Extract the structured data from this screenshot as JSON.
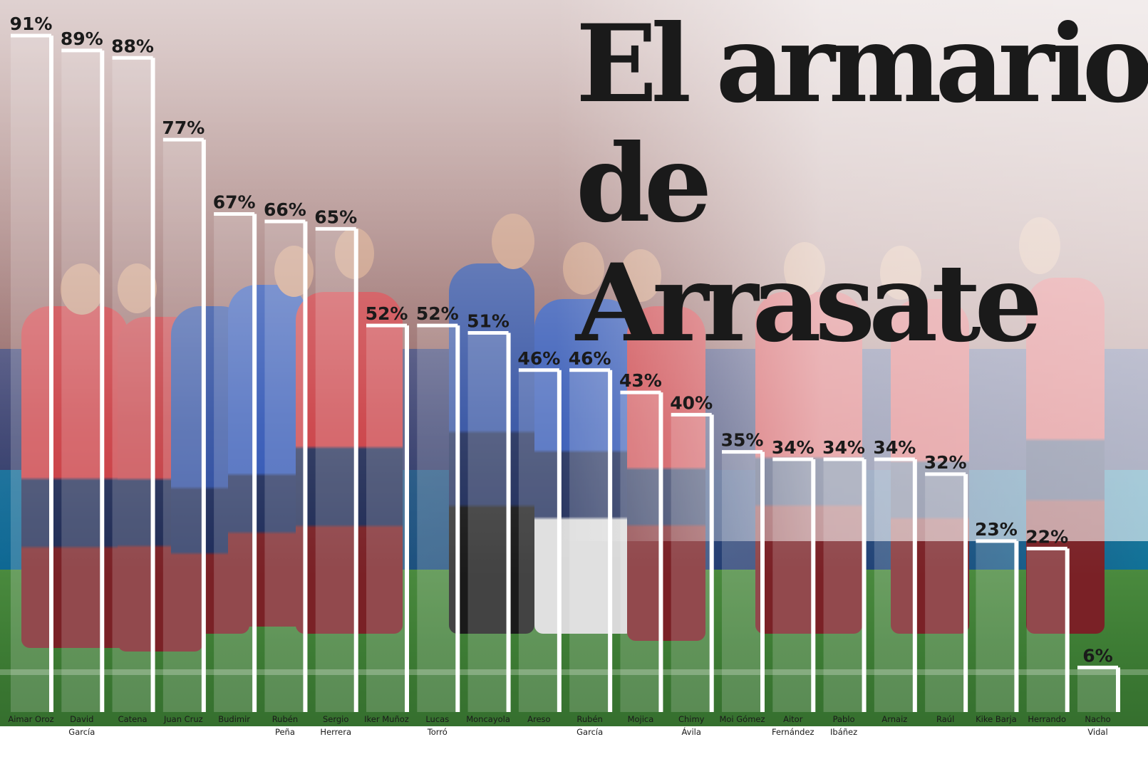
{
  "chart_data": {
    "type": "bar",
    "title": "El armario\nde Arrasate",
    "categories": [
      "Aimar Oroz",
      "David García",
      "Catena",
      "Juan Cruz",
      "Budimir",
      "Rubén Peña",
      "Sergio Herrera",
      "Iker Muñoz",
      "Lucas Torró",
      "Moncayola",
      "Areso",
      "Rubén García",
      "Mojica",
      "Chimy Ávila",
      "Moi Gómez",
      "Aitor Fernández",
      "Pablo Ibáñez",
      "Arnaiz",
      "Raúl",
      "Kike Barja",
      "Herrando",
      "Nacho Vidal"
    ],
    "category_lines": [
      [
        "Aimar Oroz"
      ],
      [
        "David",
        "García"
      ],
      [
        "Catena"
      ],
      [
        "Juan Cruz"
      ],
      [
        "Budimir"
      ],
      [
        "Rubén",
        "Peña"
      ],
      [
        "Sergio",
        "Herrera"
      ],
      [
        "Iker Muñoz"
      ],
      [
        "Lucas",
        "Torró"
      ],
      [
        "Moncayola"
      ],
      [
        "Areso"
      ],
      [
        "Rubén",
        "García"
      ],
      [
        "Mojica"
      ],
      [
        "Chimy",
        "Ávila"
      ],
      [
        "Moi Gómez"
      ],
      [
        "Aitor",
        "Fernández"
      ],
      [
        "Pablo",
        "Ibáñez"
      ],
      [
        "Arnaiz"
      ],
      [
        "Raúl"
      ],
      [
        "Kike Barja"
      ],
      [
        "Herrando"
      ],
      [
        "Nacho",
        "Vidal"
      ]
    ],
    "values": [
      91,
      89,
      88,
      77,
      67,
      66,
      65,
      52,
      52,
      51,
      46,
      46,
      43,
      40,
      35,
      34,
      34,
      34,
      32,
      23,
      22,
      6
    ],
    "value_labels": [
      "91%",
      "89%",
      "88%",
      "77%",
      "67%",
      "66%",
      "65%",
      "52%",
      "52%",
      "51%",
      "46%",
      "46%",
      "43%",
      "40%",
      "35%",
      "34%",
      "34%",
      "34%",
      "32%",
      "23%",
      "22%",
      "6%"
    ],
    "unit": "%",
    "ylim": [
      0,
      100
    ],
    "grid": false,
    "legend": "none",
    "colors": {
      "bar_outline": "#ffffff",
      "text": "#1a1a1a"
    }
  }
}
